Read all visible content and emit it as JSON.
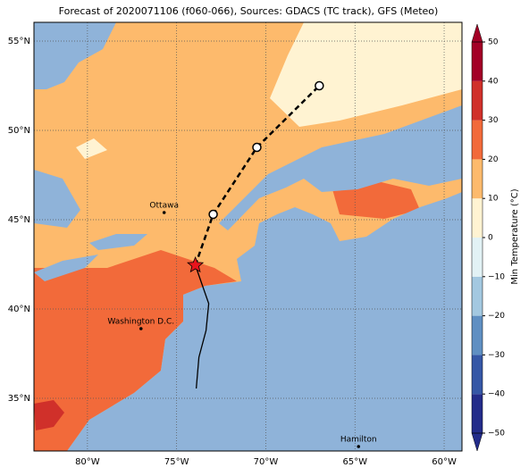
{
  "title": "Forecast of 2020071106 (f060-066), Sources: GDACS (TC track), GFS (Meteo)",
  "map": {
    "lonlim": [
      -83,
      -59
    ],
    "latlim": [
      32.05,
      56.05
    ],
    "lonticks": [
      {
        "value": -80,
        "label": "80°W"
      },
      {
        "value": -75,
        "label": "75°W"
      },
      {
        "value": -70,
        "label": "70°W"
      },
      {
        "value": -65,
        "label": "65°W"
      },
      {
        "value": -60,
        "label": "60°W"
      }
    ],
    "latticks": [
      {
        "value": 55,
        "label": "55°N"
      },
      {
        "value": 50,
        "label": "50°N"
      },
      {
        "value": 45,
        "label": "45°N"
      },
      {
        "value": 40,
        "label": "40°N"
      },
      {
        "value": 35,
        "label": "35°N"
      }
    ],
    "cities": [
      {
        "name": "Ottawa",
        "lon": -75.7,
        "lat": 45.4
      },
      {
        "name": "Washington D.C.",
        "lon": -77,
        "lat": 38.9
      },
      {
        "name": "Hamilton",
        "lon": -64.8,
        "lat": 32.3
      }
    ],
    "observed_track": {
      "lon": [
        -73.9,
        -73.75,
        -73.35,
        -73.2,
        -73.95
      ],
      "lat": [
        35.55,
        37.3,
        38.8,
        40.3,
        42.45
      ]
    },
    "forecast_track": {
      "lon": [
        -73.95,
        -72.95,
        -70.5,
        -67.0
      ],
      "lat": [
        42.45,
        45.3,
        49.05,
        52.5
      ]
    }
  },
  "colorbar": {
    "label": "Min Temperature (°C)",
    "ticks": [
      {
        "value": -50,
        "label": "−50"
      },
      {
        "value": -40,
        "label": "−40"
      },
      {
        "value": -30,
        "label": "−30"
      },
      {
        "value": -20,
        "label": "−20"
      },
      {
        "value": -10,
        "label": "−10"
      },
      0,
      10,
      20,
      30,
      40,
      50
    ],
    "colors": [
      "#232c8a",
      "#3557a6",
      "#5f8fc2",
      "#a3c8e0",
      "#e2f2f5",
      "#fff3d2",
      "#fdba6c",
      "#f26a3a",
      "#d0302a",
      "#a30026"
    ]
  }
}
